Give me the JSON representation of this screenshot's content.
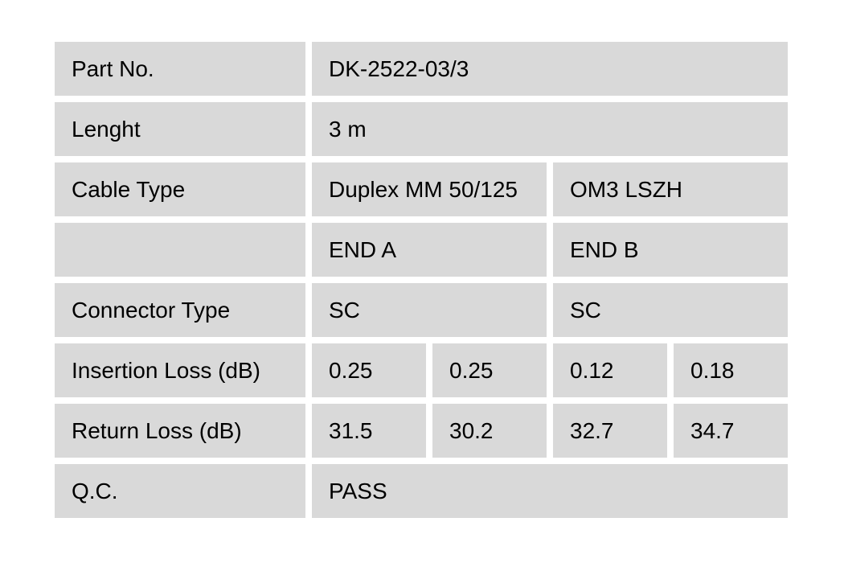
{
  "page": {
    "background": "#ffffff"
  },
  "table": {
    "cell_bg": "#d9d9d9",
    "text_color": "#000000",
    "rows": {
      "part_no": {
        "label": "Part No.",
        "value": "DK-2522-03/3"
      },
      "length": {
        "label": "Lenght",
        "value": "3 m"
      },
      "cable_type": {
        "label": "Cable Type",
        "end_a": "Duplex MM 50/125",
        "end_b": "OM3 LSZH"
      },
      "ends_header": {
        "label": "",
        "end_a": "END A",
        "end_b": "END B"
      },
      "connector_type": {
        "label": "Connector Type",
        "end_a": "SC",
        "end_b": "SC"
      },
      "insertion_loss": {
        "label": "Insertion Loss (dB)",
        "values": [
          "0.25",
          "0.25",
          "0.12",
          "0.18"
        ]
      },
      "return_loss": {
        "label": "Return Loss (dB)",
        "values": [
          "31.5",
          "30.2",
          "32.7",
          "34.7"
        ]
      },
      "qc": {
        "label": "Q.C.",
        "value": "PASS"
      }
    }
  }
}
